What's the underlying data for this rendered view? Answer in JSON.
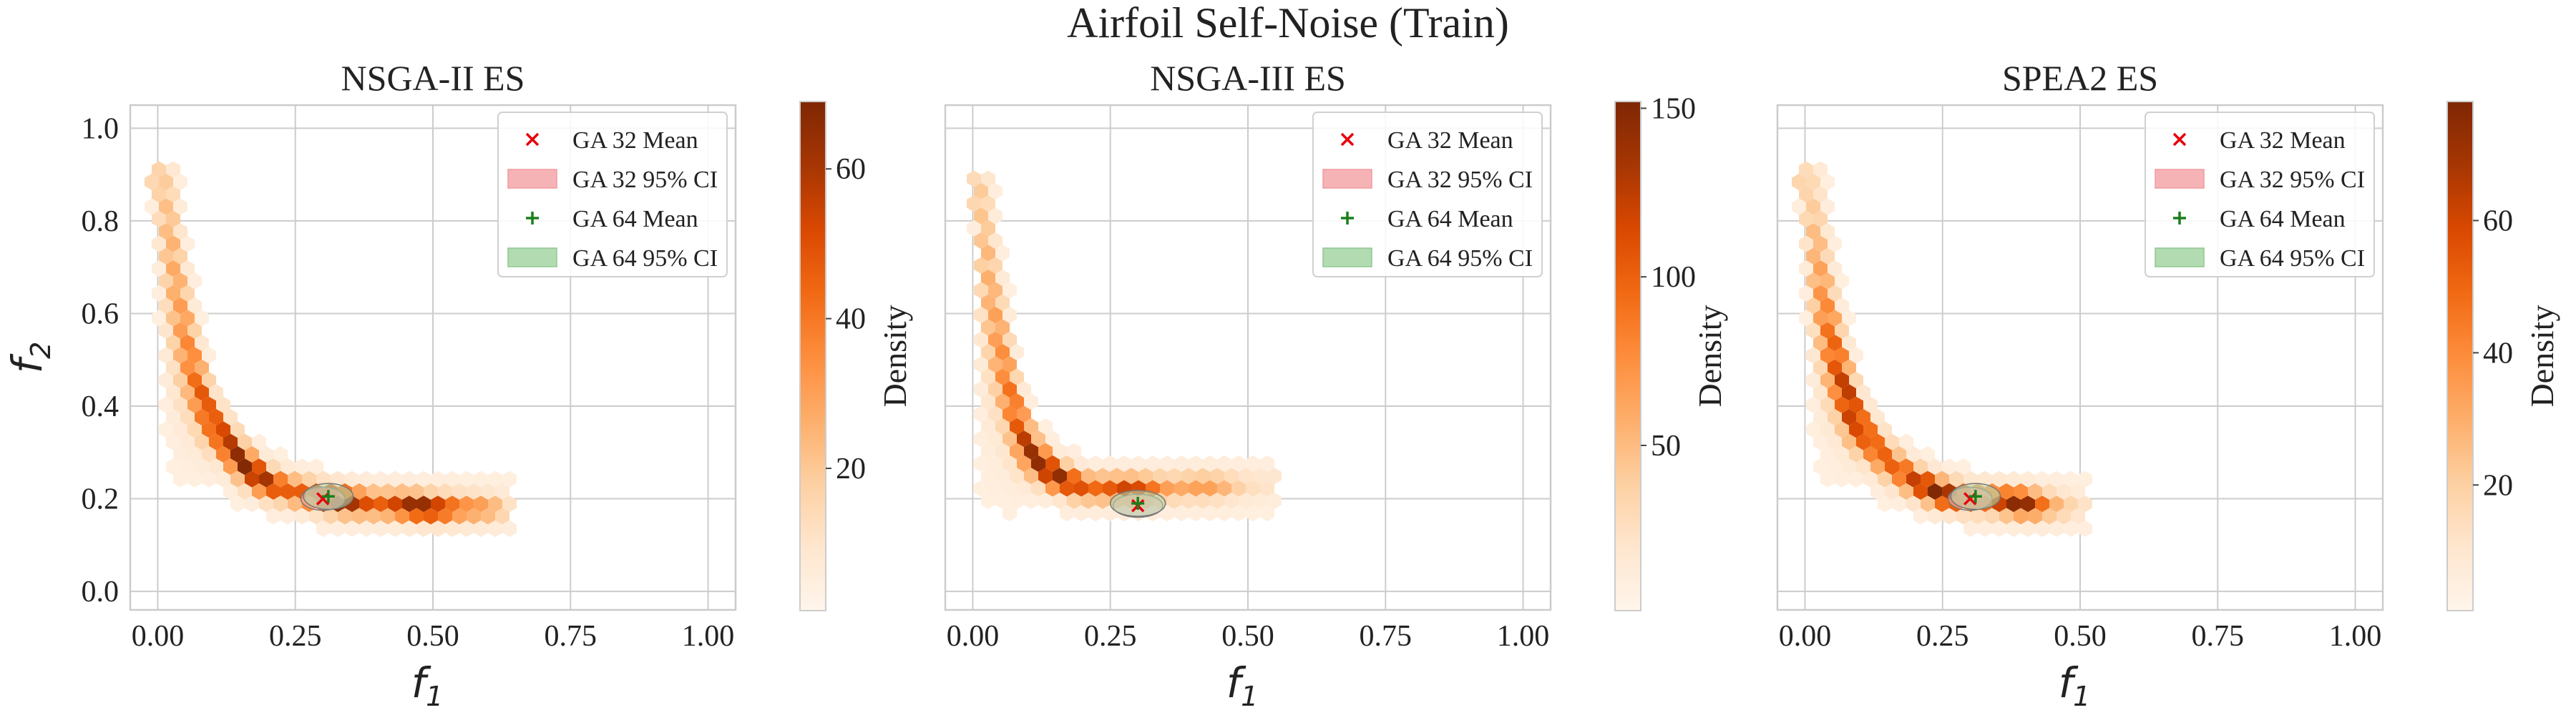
{
  "figure": {
    "title": "Airfoil Self-Noise (Train)"
  },
  "colors": {
    "cmap": [
      "#fff5eb",
      "#fee6ce",
      "#fdd0a2",
      "#fdae6b",
      "#fd8d3c",
      "#f16913",
      "#d94801",
      "#a63603",
      "#7f2704"
    ],
    "ga32_mean": "#e8000b",
    "ga32_ci": "#f6b3b6",
    "ga64_mean": "#1a7f1a",
    "ga64_ci": "#b2dbb2",
    "grid": "#cccccc",
    "frame": "#cccccc"
  },
  "axis_text": {
    "xlabel": "f",
    "xsub": "1",
    "ylabel": "f",
    "ysub": "2",
    "colorbar_label": "Density"
  },
  "legend": {
    "ga32_mean": "GA 32 Mean",
    "ga32_ci": "GA 32 95% CI",
    "ga64_mean": "GA 64 Mean",
    "ga64_ci": "GA 64 95% CI"
  },
  "chart_data": [
    {
      "type": "heatmap",
      "title": "NSGA-II ES",
      "xlabel": "f1",
      "ylabel": "f2",
      "xlim": [
        -0.05,
        1.05
      ],
      "ylim": [
        -0.04,
        1.05
      ],
      "xticks": [
        "0.00",
        "0.25",
        "0.50",
        "0.75",
        "1.00"
      ],
      "yticks": [
        "0.0",
        "0.2",
        "0.4",
        "0.6",
        "0.8",
        "1.0"
      ],
      "colorbar": {
        "label": "Density",
        "range": [
          1,
          69
        ],
        "ticks": [
          20,
          40,
          60
        ]
      },
      "front": [
        [
          0.0,
          0.88
        ],
        [
          0.02,
          0.72
        ],
        [
          0.04,
          0.58
        ],
        [
          0.06,
          0.48
        ],
        [
          0.08,
          0.41
        ],
        [
          0.1,
          0.36
        ],
        [
          0.13,
          0.31
        ],
        [
          0.16,
          0.27
        ],
        [
          0.2,
          0.235
        ],
        [
          0.25,
          0.215
        ],
        [
          0.3,
          0.2
        ],
        [
          0.4,
          0.188
        ],
        [
          0.5,
          0.18
        ],
        [
          0.6,
          0.178
        ],
        [
          0.64,
          0.178
        ]
      ],
      "peak_range": [
        0.08,
        0.53
      ],
      "density_peak": 69,
      "ga32": {
        "mean": [
          0.3,
          0.2
        ],
        "ci": [
          0.04,
          0.025
        ]
      },
      "ga64": {
        "mean": [
          0.31,
          0.205
        ],
        "ci": [
          0.045,
          0.028
        ]
      }
    },
    {
      "type": "heatmap",
      "title": "NSGA-III ES",
      "xlabel": "f1",
      "ylabel": "f2",
      "xlim": [
        -0.05,
        1.05
      ],
      "ylim": [
        -0.04,
        1.05
      ],
      "xticks": [
        "0.00",
        "0.25",
        "0.50",
        "0.75",
        "1.00"
      ],
      "yticks": [],
      "colorbar": {
        "label": "Density",
        "range": [
          1,
          152
        ],
        "ticks": [
          50,
          100,
          150
        ]
      },
      "front": [
        [
          0.01,
          0.86
        ],
        [
          0.02,
          0.7
        ],
        [
          0.04,
          0.55
        ],
        [
          0.06,
          0.44
        ],
        [
          0.08,
          0.36
        ],
        [
          0.1,
          0.31
        ],
        [
          0.12,
          0.28
        ],
        [
          0.15,
          0.25
        ],
        [
          0.2,
          0.225
        ],
        [
          0.25,
          0.22
        ],
        [
          0.3,
          0.22
        ],
        [
          0.4,
          0.225
        ],
        [
          0.5,
          0.228
        ],
        [
          0.54,
          0.23
        ]
      ],
      "peak_range": [
        0.1,
        0.2
      ],
      "density_peak": 152,
      "ga32": {
        "mean": [
          0.3,
          0.185
        ],
        "ci": [
          0.045,
          0.025
        ]
      },
      "ga64": {
        "mean": [
          0.3,
          0.19
        ],
        "ci": [
          0.05,
          0.028
        ]
      }
    },
    {
      "type": "heatmap",
      "title": "SPEA2 ES",
      "xlabel": "f1",
      "ylabel": "f2",
      "xlim": [
        -0.05,
        1.05
      ],
      "ylim": [
        -0.04,
        1.05
      ],
      "xticks": [
        "0.00",
        "0.25",
        "0.50",
        "0.75",
        "1.00"
      ],
      "yticks": [],
      "colorbar": {
        "label": "Density",
        "range": [
          1,
          78
        ],
        "ticks": [
          20,
          40,
          60
        ]
      },
      "front": [
        [
          0.0,
          0.88
        ],
        [
          0.02,
          0.72
        ],
        [
          0.04,
          0.58
        ],
        [
          0.06,
          0.48
        ],
        [
          0.08,
          0.41
        ],
        [
          0.1,
          0.36
        ],
        [
          0.13,
          0.31
        ],
        [
          0.16,
          0.27
        ],
        [
          0.2,
          0.235
        ],
        [
          0.25,
          0.21
        ],
        [
          0.3,
          0.2
        ],
        [
          0.4,
          0.19
        ],
        [
          0.5,
          0.18
        ]
      ],
      "peak_range": [
        0.08,
        0.4
      ],
      "density_peak": 78,
      "ga32": {
        "mean": [
          0.3,
          0.2
        ],
        "ci": [
          0.04,
          0.025
        ]
      },
      "ga64": {
        "mean": [
          0.31,
          0.205
        ],
        "ci": [
          0.045,
          0.028
        ]
      }
    }
  ]
}
